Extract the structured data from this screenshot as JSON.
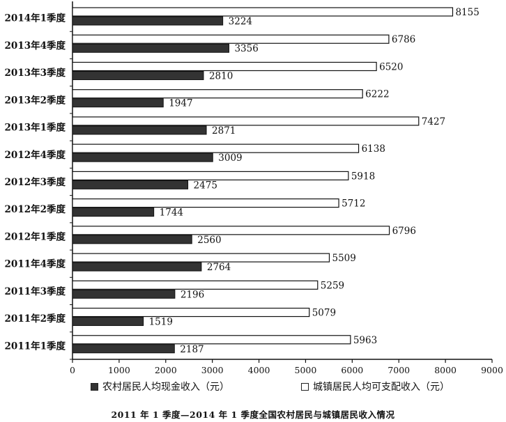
{
  "chart_data": {
    "type": "bar",
    "orientation": "horizontal",
    "title": "2011 年 1 季度—2014 年 1 季度全国农村居民与城镇居民收入情况",
    "categories": [
      "2014年1季度",
      "2013年4季度",
      "2013年3季度",
      "2013年2季度",
      "2013年1季度",
      "2012年4季度",
      "2012年3季度",
      "2012年2季度",
      "2012年1季度",
      "2011年4季度",
      "2011年3季度",
      "2011年2季度",
      "2011年1季度"
    ],
    "series": [
      {
        "name": "城镇居民人均可支配收入（元）",
        "color": "#ffffff",
        "values": [
          8155,
          6786,
          6520,
          6222,
          7427,
          6138,
          5918,
          5712,
          6796,
          5509,
          5259,
          5079,
          5963
        ]
      },
      {
        "name": "农村居民人均现金收入（元）",
        "color": "#333333",
        "values": [
          3224,
          3356,
          2810,
          1947,
          2871,
          3009,
          2475,
          1744,
          2560,
          2764,
          2196,
          1519,
          2187
        ]
      }
    ],
    "xlim": [
      0,
      9000
    ],
    "xticks": [
      0,
      1000,
      2000,
      3000,
      4000,
      5000,
      6000,
      7000,
      8000,
      9000
    ],
    "grid": false,
    "legend_position": "bottom"
  }
}
